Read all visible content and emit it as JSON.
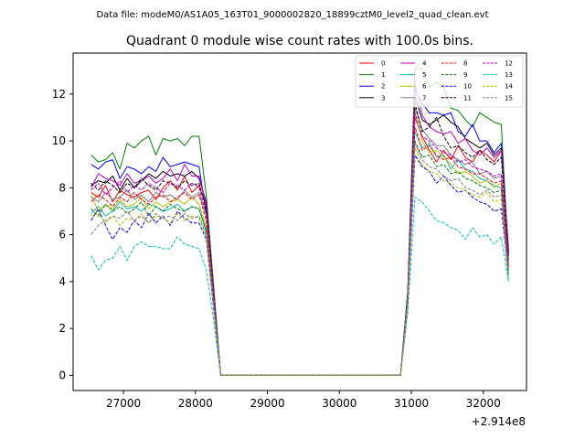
{
  "figure": {
    "suptitle": "Data file: modeM0/AS1A05_163T01_9000002820_18899cztM0_level2_quad_clean.evt"
  },
  "chart_data": {
    "type": "line",
    "title": "Quadrant 0 module wise count rates with 100.0s bins.",
    "xlabel": "",
    "ylabel": "",
    "x_offset_label": "+2.914e8",
    "xlim": [
      26300,
      32600
    ],
    "ylim": [
      -0.65,
      13.75
    ],
    "xticks": [
      27000,
      28000,
      29000,
      30000,
      31000,
      32000
    ],
    "xtick_labels": [
      "27000",
      "28000",
      "29000",
      "30000",
      "31000",
      "32000"
    ],
    "yticks": [
      0,
      2,
      4,
      6,
      8,
      10,
      12
    ],
    "ytick_labels": [
      "0",
      "2",
      "4",
      "6",
      "8",
      "10",
      "12"
    ],
    "legend_position": "top-right",
    "legend_columns": 4,
    "x": [
      26550,
      26650,
      26750,
      26850,
      26950,
      27050,
      27150,
      27250,
      27350,
      27450,
      27550,
      27650,
      27750,
      27850,
      27950,
      28050,
      28150,
      28250,
      28350,
      28450,
      28550,
      28650,
      28750,
      28850,
      28950,
      29050,
      29150,
      29250,
      29350,
      29450,
      29550,
      29650,
      29750,
      29850,
      29950,
      30050,
      30150,
      30250,
      30350,
      30450,
      30550,
      30650,
      30750,
      30850,
      30950,
      31050,
      31150,
      31250,
      31350,
      31450,
      31550,
      31650,
      31750,
      31850,
      31950,
      32050,
      32150,
      32250,
      32350
    ],
    "series": [
      {
        "name": "0",
        "color": "#ff0000",
        "dashed": false,
        "values": [
          7.8,
          7.6,
          8.1,
          7.4,
          7.9,
          7.7,
          7.6,
          7.8,
          7.9,
          7.5,
          8.0,
          8.3,
          7.9,
          8.5,
          7.8,
          8.1,
          7.2,
          3.6,
          0,
          0,
          0,
          0,
          0,
          0,
          0,
          0,
          0,
          0,
          0,
          0,
          0,
          0,
          0,
          0,
          0,
          0,
          0,
          0,
          0,
          0,
          0,
          0,
          0,
          0,
          3.4,
          11.0,
          10.2,
          9.6,
          9.1,
          9.6,
          9.2,
          9.8,
          9.3,
          9.1,
          9.6,
          9.4,
          9.1,
          9.6,
          5.4
        ]
      },
      {
        "name": "1",
        "color": "#008000",
        "dashed": false,
        "values": [
          9.4,
          9.1,
          9.2,
          9.5,
          8.8,
          9.9,
          9.7,
          10.0,
          10.2,
          9.4,
          10.1,
          10.0,
          10.1,
          9.8,
          10.2,
          10.2,
          7.7,
          3.9,
          0,
          0,
          0,
          0,
          0,
          0,
          0,
          0,
          0,
          0,
          0,
          0,
          0,
          0,
          0,
          0,
          0,
          0,
          0,
          0,
          0,
          0,
          0,
          0,
          0,
          0,
          3.6,
          13.1,
          13.1,
          12.3,
          12.5,
          12.3,
          11.4,
          11.3,
          10.9,
          10.6,
          11.2,
          11.0,
          10.8,
          10.7,
          4.9
        ]
      },
      {
        "name": "2",
        "color": "#0000ff",
        "dashed": false,
        "values": [
          9.0,
          8.8,
          9.1,
          9.2,
          8.4,
          8.9,
          8.8,
          8.6,
          8.9,
          8.7,
          9.3,
          8.9,
          9.0,
          9.1,
          9.0,
          8.9,
          6.9,
          3.5,
          0,
          0,
          0,
          0,
          0,
          0,
          0,
          0,
          0,
          0,
          0,
          0,
          0,
          0,
          0,
          0,
          0,
          0,
          0,
          0,
          0,
          0,
          0,
          0,
          0,
          0,
          3.5,
          12.2,
          11.6,
          11.2,
          11.2,
          11.1,
          11.2,
          10.4,
          10.2,
          10.7,
          10.0,
          10.0,
          9.5,
          9.9,
          5.2
        ]
      },
      {
        "name": "3",
        "color": "#000000",
        "dashed": false,
        "values": [
          8.1,
          8.3,
          8.2,
          8.5,
          7.9,
          8.4,
          8.0,
          8.3,
          8.6,
          8.4,
          8.7,
          8.5,
          8.6,
          8.5,
          8.7,
          8.4,
          7.4,
          3.7,
          0,
          0,
          0,
          0,
          0,
          0,
          0,
          0,
          0,
          0,
          0,
          0,
          0,
          0,
          0,
          0,
          0,
          0,
          0,
          0,
          0,
          0,
          0,
          0,
          0,
          0,
          3.5,
          11.9,
          10.9,
          10.7,
          10.9,
          11.1,
          10.8,
          10.6,
          10.1,
          9.9,
          9.7,
          9.9,
          9.4,
          9.7,
          5.3
        ]
      },
      {
        "name": "4",
        "color": "#bf00bf",
        "dashed": false,
        "values": [
          8.0,
          8.6,
          8.4,
          8.3,
          8.1,
          8.6,
          8.2,
          8.3,
          8.5,
          8.2,
          8.4,
          8.8,
          8.3,
          9.0,
          8.5,
          8.5,
          7.3,
          3.6,
          0,
          0,
          0,
          0,
          0,
          0,
          0,
          0,
          0,
          0,
          0,
          0,
          0,
          0,
          0,
          0,
          0,
          0,
          0,
          0,
          0,
          0,
          0,
          0,
          0,
          0,
          3.4,
          12.5,
          11.1,
          10.6,
          10.4,
          10.3,
          10.4,
          9.9,
          10.1,
          9.6,
          9.4,
          9.7,
          9.3,
          9.6,
          5.2
        ]
      },
      {
        "name": "5",
        "color": "#00bfbf",
        "dashed": false,
        "values": [
          6.9,
          7.2,
          6.8,
          7.0,
          7.4,
          7.1,
          7.2,
          7.0,
          7.3,
          7.2,
          7.0,
          7.1,
          7.3,
          7.0,
          7.2,
          7.1,
          6.1,
          3.1,
          0,
          0,
          0,
          0,
          0,
          0,
          0,
          0,
          0,
          0,
          0,
          0,
          0,
          0,
          0,
          0,
          0,
          0,
          0,
          0,
          0,
          0,
          0,
          0,
          0,
          0,
          3.2,
          10.4,
          9.7,
          9.9,
          9.3,
          9.4,
          8.8,
          9.2,
          8.8,
          8.7,
          8.4,
          8.3,
          8.1,
          8.0,
          4.0
        ]
      },
      {
        "name": "6",
        "color": "#bfbf00",
        "dashed": false,
        "values": [
          7.7,
          7.0,
          7.3,
          7.1,
          7.5,
          7.2,
          7.3,
          7.6,
          7.1,
          7.4,
          7.2,
          7.4,
          7.5,
          7.3,
          7.6,
          7.3,
          6.3,
          3.2,
          0,
          0,
          0,
          0,
          0,
          0,
          0,
          0,
          0,
          0,
          0,
          0,
          0,
          0,
          0,
          0,
          0,
          0,
          0,
          0,
          0,
          0,
          0,
          0,
          0,
          0,
          3.2,
          11.2,
          10.0,
          9.5,
          9.6,
          9.3,
          9.0,
          8.6,
          8.7,
          8.5,
          8.2,
          8.3,
          8.0,
          8.2,
          4.5
        ]
      },
      {
        "name": "7",
        "color": "#808080",
        "dashed": false,
        "values": [
          7.6,
          7.4,
          7.8,
          7.5,
          7.6,
          7.9,
          7.5,
          7.7,
          7.4,
          7.8,
          7.6,
          7.7,
          7.5,
          7.9,
          7.6,
          7.8,
          6.8,
          3.4,
          0,
          0,
          0,
          0,
          0,
          0,
          0,
          0,
          0,
          0,
          0,
          0,
          0,
          0,
          0,
          0,
          0,
          0,
          0,
          0,
          0,
          0,
          0,
          0,
          0,
          0,
          3.4,
          11.4,
          10.5,
          10.1,
          9.8,
          9.8,
          9.4,
          9.2,
          9.0,
          9.1,
          8.6,
          8.7,
          8.4,
          8.5,
          4.7
        ]
      },
      {
        "name": "8",
        "color": "#ff0000",
        "dashed": true,
        "values": [
          7.4,
          7.7,
          7.5,
          7.2,
          7.6,
          7.4,
          7.8,
          7.5,
          7.3,
          7.6,
          7.7,
          7.4,
          7.6,
          7.8,
          7.5,
          7.7,
          6.6,
          3.3,
          0,
          0,
          0,
          0,
          0,
          0,
          0,
          0,
          0,
          0,
          0,
          0,
          0,
          0,
          0,
          0,
          0,
          0,
          0,
          0,
          0,
          0,
          0,
          0,
          0,
          0,
          3.3,
          10.6,
          9.6,
          9.8,
          9.4,
          9.2,
          9.3,
          8.9,
          8.8,
          8.6,
          8.6,
          8.4,
          8.2,
          8.3,
          4.6
        ]
      },
      {
        "name": "9",
        "color": "#008000",
        "dashed": true,
        "values": [
          7.1,
          6.8,
          7.3,
          7.0,
          7.2,
          6.9,
          7.1,
          7.4,
          6.8,
          7.2,
          7.0,
          7.3,
          7.1,
          7.0,
          7.2,
          7.1,
          6.2,
          3.1,
          0,
          0,
          0,
          0,
          0,
          0,
          0,
          0,
          0,
          0,
          0,
          0,
          0,
          0,
          0,
          0,
          0,
          0,
          0,
          0,
          0,
          0,
          0,
          0,
          0,
          0,
          3.1,
          10.0,
          9.3,
          9.4,
          8.9,
          9.0,
          8.6,
          8.7,
          8.4,
          8.3,
          8.1,
          8.0,
          7.8,
          7.9,
          4.4
        ]
      },
      {
        "name": "10",
        "color": "#0000ff",
        "dashed": true,
        "values": [
          6.6,
          7.1,
          6.4,
          5.8,
          6.3,
          6.1,
          6.6,
          6.3,
          6.9,
          6.5,
          6.8,
          6.4,
          7.0,
          6.7,
          6.5,
          6.5,
          5.8,
          2.9,
          0,
          0,
          0,
          0,
          0,
          0,
          0,
          0,
          0,
          0,
          0,
          0,
          0,
          0,
          0,
          0,
          0,
          0,
          0,
          0,
          0,
          0,
          0,
          0,
          0,
          0,
          3.0,
          9.4,
          8.9,
          8.7,
          8.2,
          8.5,
          8.1,
          7.8,
          7.9,
          7.6,
          7.4,
          7.3,
          7.0,
          7.1,
          4.3
        ]
      },
      {
        "name": "11",
        "color": "#000000",
        "dashed": true,
        "values": [
          8.2,
          7.9,
          8.3,
          8.1,
          7.8,
          8.2,
          8.0,
          8.4,
          8.1,
          7.9,
          8.3,
          8.2,
          8.0,
          8.3,
          8.1,
          8.2,
          7.1,
          3.5,
          0,
          0,
          0,
          0,
          0,
          0,
          0,
          0,
          0,
          0,
          0,
          0,
          0,
          0,
          0,
          0,
          0,
          0,
          0,
          0,
          0,
          0,
          0,
          0,
          0,
          0,
          3.5,
          11.6,
          10.4,
          10.6,
          11.0,
          10.2,
          9.7,
          9.8,
          9.5,
          9.3,
          9.6,
          9.2,
          9.0,
          9.3,
          5.1
        ]
      },
      {
        "name": "12",
        "color": "#bf00bf",
        "dashed": true,
        "values": [
          7.9,
          8.2,
          7.7,
          8.0,
          8.3,
          7.8,
          8.1,
          7.9,
          8.2,
          8.0,
          7.8,
          8.2,
          8.1,
          7.9,
          8.2,
          8.0,
          6.9,
          3.4,
          0,
          0,
          0,
          0,
          0,
          0,
          0,
          0,
          0,
          0,
          0,
          0,
          0,
          0,
          0,
          0,
          0,
          0,
          0,
          0,
          0,
          0,
          0,
          0,
          0,
          0,
          3.4,
          11.2,
          10.2,
          10.0,
          9.7,
          9.5,
          9.4,
          9.1,
          9.2,
          8.9,
          8.8,
          8.7,
          8.5,
          8.6,
          4.8
        ]
      },
      {
        "name": "13",
        "color": "#00bfbf",
        "dashed": true,
        "values": [
          5.1,
          4.5,
          4.9,
          5.0,
          5.5,
          4.9,
          5.5,
          5.7,
          5.5,
          5.5,
          5.4,
          5.4,
          5.9,
          5.6,
          5.5,
          5.4,
          4.5,
          2.4,
          0,
          0,
          0,
          0,
          0,
          0,
          0,
          0,
          0,
          0,
          0,
          0,
          0,
          0,
          0,
          0,
          0,
          0,
          0,
          0,
          0,
          0,
          0,
          0,
          0,
          0,
          2.7,
          7.6,
          7.4,
          7.0,
          6.6,
          6.5,
          6.3,
          6.2,
          5.8,
          6.3,
          5.9,
          6.0,
          5.6,
          5.9,
          4.0
        ]
      },
      {
        "name": "14",
        "color": "#bfbf00",
        "dashed": true,
        "values": [
          6.8,
          6.9,
          6.5,
          6.8,
          6.4,
          6.7,
          6.6,
          6.9,
          6.5,
          6.8,
          6.7,
          6.5,
          6.9,
          6.6,
          6.8,
          6.7,
          5.9,
          3.0,
          0,
          0,
          0,
          0,
          0,
          0,
          0,
          0,
          0,
          0,
          0,
          0,
          0,
          0,
          0,
          0,
          0,
          0,
          0,
          0,
          0,
          0,
          0,
          0,
          0,
          0,
          3.1,
          9.7,
          9.0,
          8.7,
          8.6,
          8.3,
          8.2,
          8.0,
          7.9,
          7.7,
          7.6,
          7.8,
          7.4,
          7.5,
          4.2
        ]
      },
      {
        "name": "15",
        "color": "#808080",
        "dashed": true,
        "values": [
          6.0,
          6.4,
          6.6,
          6.8,
          6.7,
          7.0,
          6.6,
          6.8,
          6.5,
          6.9,
          6.7,
          6.8,
          6.6,
          6.9,
          6.7,
          6.8,
          6.0,
          3.0,
          0,
          0,
          0,
          0,
          0,
          0,
          0,
          0,
          0,
          0,
          0,
          0,
          0,
          0,
          0,
          0,
          0,
          0,
          0,
          0,
          0,
          0,
          0,
          0,
          0,
          0,
          3.1,
          9.9,
          9.2,
          8.9,
          8.8,
          8.5,
          8.3,
          8.4,
          8.0,
          7.9,
          7.7,
          7.9,
          7.6,
          7.7,
          4.3
        ]
      }
    ]
  }
}
